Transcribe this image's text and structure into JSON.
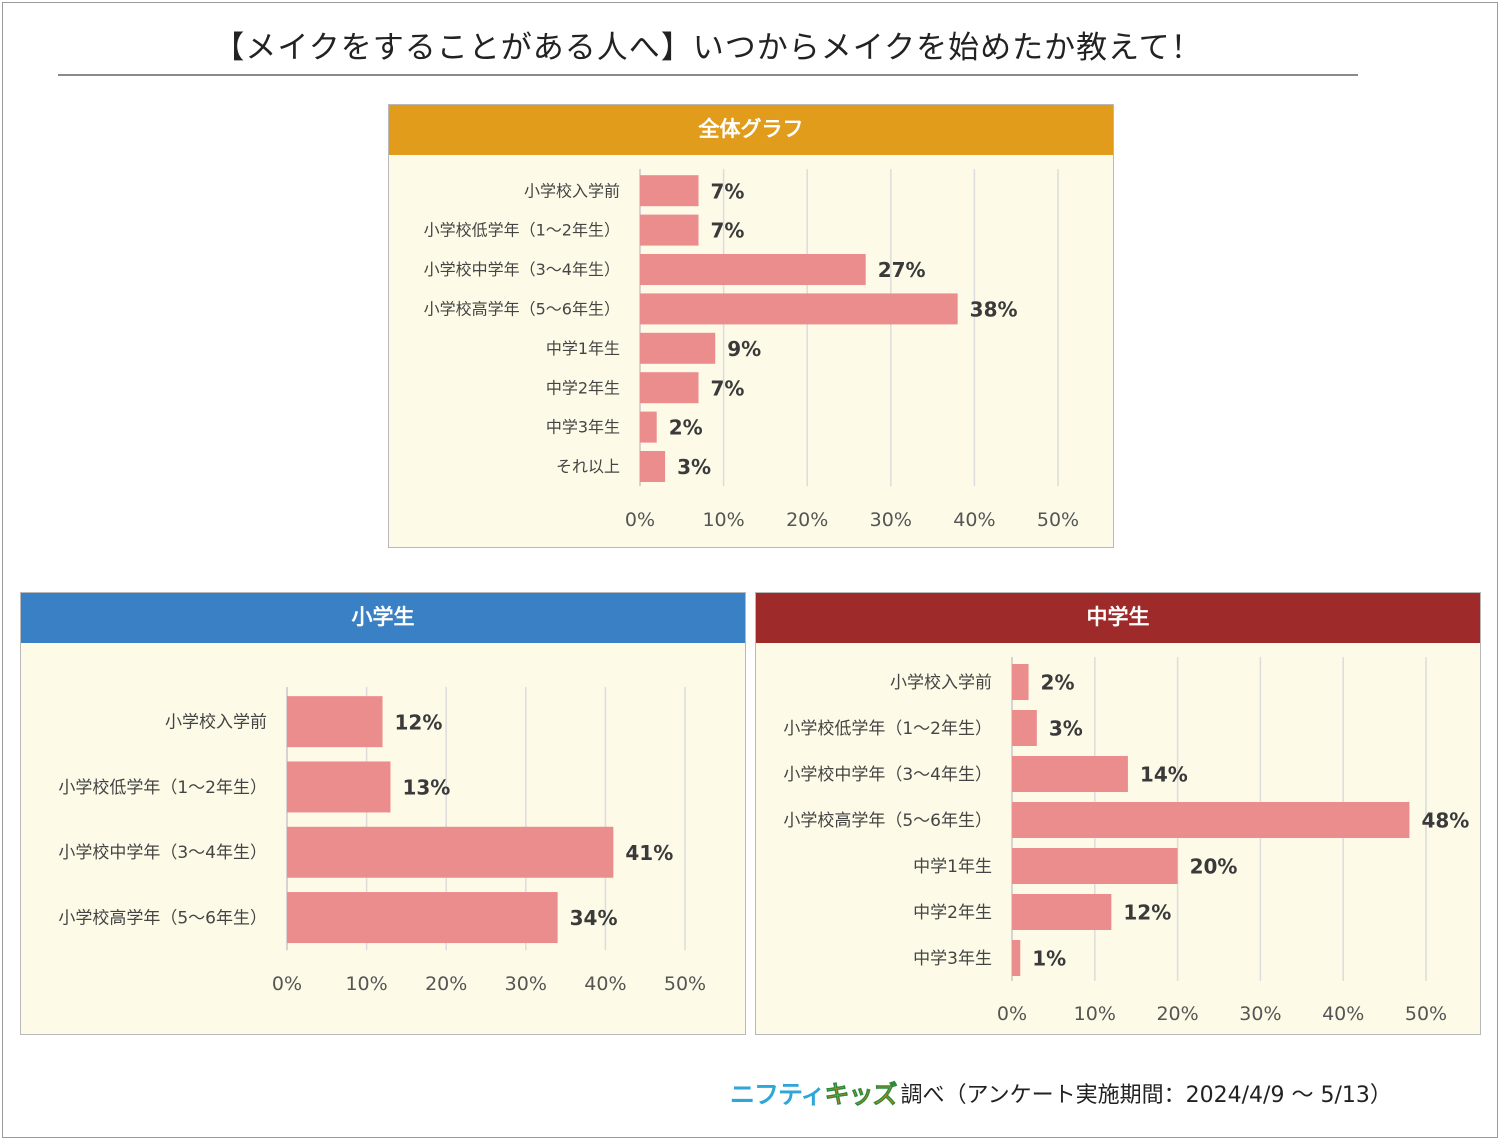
{
  "title": "【メイクをすることがある人へ】いつからメイクを始めたか教えて！",
  "footer": {
    "logo_part1": "ニフティ",
    "logo_part2": "キッズ",
    "text": "調べ（アンケート実施期間：2024/4/9 ～ 5/13）"
  },
  "colors": {
    "bar": "#ec8d8d",
    "panel_bg": "#fdfbe8",
    "overall_header": "#e09c1a",
    "elementary_header": "#3a80c4",
    "junior_header": "#9e2a2a"
  },
  "chart_data": [
    {
      "type": "bar",
      "orientation": "horizontal",
      "title": "全体グラフ",
      "categories": [
        "小学校入学前",
        "小学校低学年（1～2年生）",
        "小学校中学年（3～4年生）",
        "小学校高学年（5～6年生）",
        "中学1年生",
        "中学2年生",
        "中学3年生",
        "それ以上"
      ],
      "values": [
        7,
        7,
        27,
        38,
        9,
        7,
        2,
        3
      ],
      "value_labels": [
        "7%",
        "7%",
        "27%",
        "38%",
        "9%",
        "7%",
        "2%",
        "3%"
      ],
      "xlim": [
        0,
        50
      ],
      "xticks": [
        "0%",
        "10%",
        "20%",
        "30%",
        "40%",
        "50%"
      ],
      "grid": true
    },
    {
      "type": "bar",
      "orientation": "horizontal",
      "title": "小学生",
      "categories": [
        "小学校入学前",
        "小学校低学年（1～2年生）",
        "小学校中学年（3～4年生）",
        "小学校高学年（5～6年生）"
      ],
      "values": [
        12,
        13,
        41,
        34
      ],
      "value_labels": [
        "12%",
        "13%",
        "41%",
        "34%"
      ],
      "xlim": [
        0,
        50
      ],
      "xticks": [
        "0%",
        "10%",
        "20%",
        "30%",
        "40%",
        "50%"
      ],
      "grid": true
    },
    {
      "type": "bar",
      "orientation": "horizontal",
      "title": "中学生",
      "categories": [
        "小学校入学前",
        "小学校低学年（1～2年生）",
        "小学校中学年（3～4年生）",
        "小学校高学年（5～6年生）",
        "中学1年生",
        "中学2年生",
        "中学3年生"
      ],
      "values": [
        2,
        3,
        14,
        48,
        20,
        12,
        1
      ],
      "value_labels": [
        "2%",
        "3%",
        "14%",
        "48%",
        "20%",
        "12%",
        "1%"
      ],
      "xlim": [
        0,
        50
      ],
      "xticks": [
        "0%",
        "10%",
        "20%",
        "30%",
        "40%",
        "50%"
      ],
      "grid": true
    }
  ]
}
